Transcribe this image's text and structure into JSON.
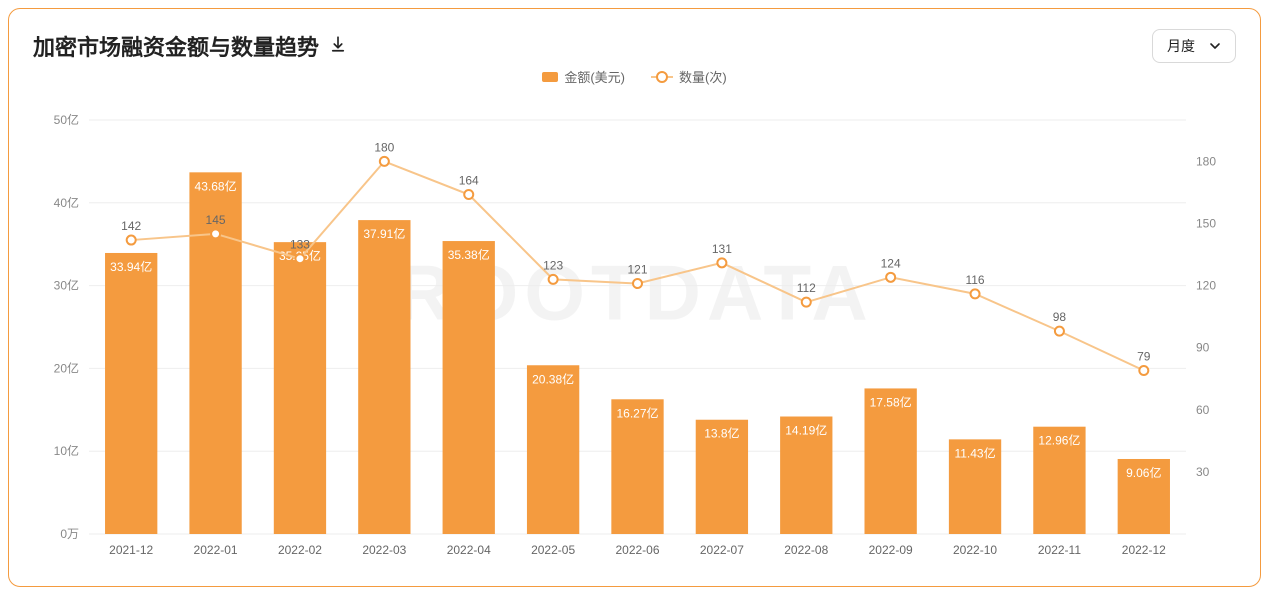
{
  "title": "加密市场融资金额与数量趋势",
  "watermark": "ROOTDATA",
  "selector": {
    "value": "月度"
  },
  "legend": {
    "bar_label": "金额(美元)",
    "line_label": "数量(次)"
  },
  "chart": {
    "type": "bar+line",
    "bar_color": "#f49b3f",
    "line_color": "#f8c58a",
    "point_fill": "#ffffff",
    "point_stroke": "#f49b3f",
    "grid_color": "#eeeeee",
    "axis_text_color": "#888888",
    "background_color": "#ffffff",
    "y_left": {
      "min": 0,
      "max": 50,
      "ticks": [
        0,
        10,
        20,
        30,
        40,
        50
      ],
      "tick_labels": [
        "0万",
        "10亿",
        "20亿",
        "30亿",
        "40亿",
        "50亿"
      ]
    },
    "y_right": {
      "min": 0,
      "max": 200,
      "ticks": [
        30,
        60,
        90,
        120,
        150,
        180
      ]
    },
    "categories": [
      "2021-12",
      "2022-01",
      "2022-02",
      "2022-03",
      "2022-04",
      "2022-05",
      "2022-06",
      "2022-07",
      "2022-08",
      "2022-09",
      "2022-10",
      "2022-11",
      "2022-12"
    ],
    "bars": {
      "values": [
        33.94,
        43.68,
        35.25,
        37.91,
        35.38,
        20.38,
        16.27,
        13.8,
        14.19,
        17.58,
        11.43,
        12.96,
        9.06
      ],
      "labels": [
        "33.94亿",
        "43.68亿",
        "35.25亿",
        "37.91亿",
        "35.38亿",
        "20.38亿",
        "16.27亿",
        "13.8亿",
        "14.19亿",
        "17.58亿",
        "11.43亿",
        "12.96亿",
        "9.06亿"
      ]
    },
    "line": {
      "values": [
        142,
        145,
        133,
        180,
        164,
        123,
        121,
        131,
        112,
        124,
        116,
        98,
        79
      ],
      "labels": [
        "142",
        "145",
        "133",
        "180",
        "164",
        "123",
        "121",
        "131",
        "112",
        "124",
        "116",
        "98",
        "79"
      ]
    },
    "bar_width_ratio": 0.62,
    "font_size_axis": 12,
    "font_size_title": 22
  }
}
